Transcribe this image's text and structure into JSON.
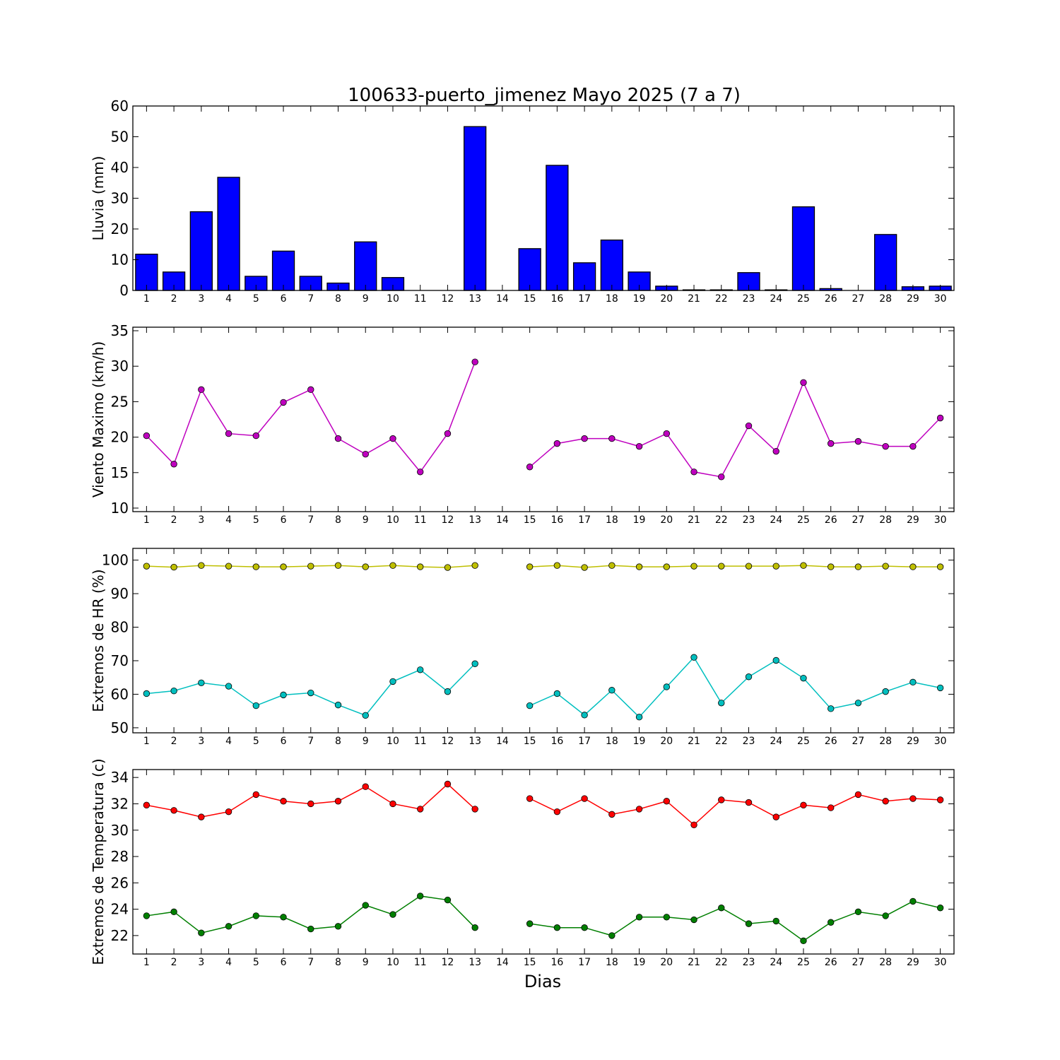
{
  "title": "100633-puerto_jimenez Mayo 2025  (7 a 7)",
  "xlabel": "Dias",
  "chart_data": [
    {
      "type": "bar",
      "ylabel": "Lluvia (mm)",
      "ylim": [
        0,
        60
      ],
      "yticks": [
        0,
        10,
        20,
        30,
        40,
        50,
        60
      ],
      "categories": [
        "1",
        "2",
        "3",
        "4",
        "5",
        "6",
        "7",
        "8",
        "9",
        "10",
        "11",
        "12",
        "13",
        "14",
        "15",
        "16",
        "17",
        "18",
        "19",
        "20",
        "21",
        "22",
        "23",
        "24",
        "25",
        "26",
        "27",
        "28",
        "29",
        "30"
      ],
      "series": [
        {
          "color": "#0000ff",
          "values": [
            11.8,
            6.0,
            25.6,
            36.8,
            4.6,
            12.8,
            4.6,
            2.4,
            15.8,
            4.2,
            0,
            0,
            53.3,
            0,
            13.6,
            40.7,
            9.0,
            16.4,
            6.0,
            1.4,
            0.2,
            0.2,
            5.8,
            0.2,
            27.2,
            0.6,
            0,
            18.2,
            1.2,
            1.4
          ]
        }
      ]
    },
    {
      "type": "line",
      "ylabel": "Viento Maximo (km/h)",
      "ylim": [
        9.5,
        35.5
      ],
      "yticks": [
        10,
        15,
        20,
        25,
        30,
        35
      ],
      "x": [
        1,
        2,
        3,
        4,
        5,
        6,
        7,
        8,
        9,
        10,
        11,
        12,
        13,
        14,
        15,
        16,
        17,
        18,
        19,
        20,
        21,
        22,
        23,
        24,
        25,
        26,
        27,
        28,
        29,
        30
      ],
      "series": [
        {
          "color": "#bf00bf",
          "values": [
            20.2,
            16.2,
            26.7,
            20.5,
            20.2,
            24.9,
            26.7,
            19.8,
            17.6,
            19.8,
            15.1,
            20.5,
            30.6,
            null,
            15.8,
            19.1,
            19.8,
            19.8,
            18.7,
            20.5,
            15.1,
            14.4,
            21.6,
            18.0,
            27.7,
            19.1,
            19.4,
            18.7,
            18.7,
            22.7
          ]
        }
      ]
    },
    {
      "type": "line",
      "ylabel": "Extremos de HR (%)",
      "ylim": [
        48.5,
        103.5
      ],
      "yticks": [
        50,
        60,
        70,
        80,
        90,
        100
      ],
      "x": [
        1,
        2,
        3,
        4,
        5,
        6,
        7,
        8,
        9,
        10,
        11,
        12,
        13,
        14,
        15,
        16,
        17,
        18,
        19,
        20,
        21,
        22,
        23,
        24,
        25,
        26,
        27,
        28,
        29,
        30
      ],
      "series": [
        {
          "color": "#bfbf00",
          "values": [
            98.2,
            97.9,
            98.4,
            98.2,
            98.0,
            98.0,
            98.2,
            98.4,
            98.0,
            98.4,
            98.0,
            97.8,
            98.4,
            null,
            98.0,
            98.4,
            97.8,
            98.4,
            98.0,
            98.0,
            98.2,
            98.2,
            98.2,
            98.2,
            98.4,
            98.0,
            98.0,
            98.2,
            98.0,
            98.0
          ]
        },
        {
          "color": "#00bfbf",
          "values": [
            60.2,
            61.0,
            63.4,
            62.4,
            56.6,
            59.8,
            60.4,
            56.8,
            53.7,
            63.8,
            67.3,
            60.8,
            69.1,
            null,
            56.6,
            60.2,
            53.8,
            61.2,
            53.2,
            62.2,
            71.0,
            57.4,
            65.2,
            70.1,
            64.8,
            55.7,
            57.4,
            60.8,
            63.6,
            61.9
          ]
        }
      ]
    },
    {
      "type": "line",
      "ylabel": "Extremos de Temperatura (c)",
      "ylim": [
        20.6,
        34.6
      ],
      "yticks": [
        22,
        24,
        26,
        28,
        30,
        32,
        34
      ],
      "x": [
        1,
        2,
        3,
        4,
        5,
        6,
        7,
        8,
        9,
        10,
        11,
        12,
        13,
        14,
        15,
        16,
        17,
        18,
        19,
        20,
        21,
        22,
        23,
        24,
        25,
        26,
        27,
        28,
        29,
        30
      ],
      "series": [
        {
          "color": "#ff0000",
          "values": [
            31.9,
            31.5,
            31.0,
            31.4,
            32.7,
            32.2,
            32.0,
            32.2,
            33.3,
            32.0,
            31.6,
            33.5,
            31.6,
            null,
            32.4,
            31.4,
            32.4,
            31.2,
            31.6,
            32.2,
            30.4,
            32.3,
            32.1,
            31.0,
            31.9,
            31.7,
            32.7,
            32.2,
            32.4,
            32.3
          ]
        },
        {
          "color": "#007f00",
          "values": [
            23.5,
            23.8,
            22.2,
            22.7,
            23.5,
            23.4,
            22.5,
            22.7,
            24.3,
            23.6,
            25.0,
            24.7,
            22.6,
            null,
            22.9,
            22.6,
            22.6,
            22.0,
            23.4,
            23.4,
            23.2,
            24.1,
            22.9,
            23.1,
            21.6,
            23.0,
            23.8,
            23.5,
            24.6,
            24.1
          ]
        }
      ]
    }
  ]
}
